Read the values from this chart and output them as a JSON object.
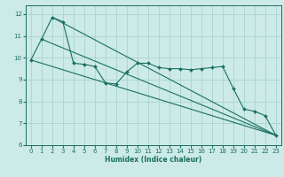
{
  "xlabel": "Humidex (Indice chaleur)",
  "xlim": [
    -0.5,
    23.5
  ],
  "ylim": [
    6.0,
    12.4
  ],
  "yticks": [
    6,
    7,
    8,
    9,
    10,
    11,
    12
  ],
  "xticks": [
    0,
    1,
    2,
    3,
    4,
    5,
    6,
    7,
    8,
    9,
    10,
    11,
    12,
    13,
    14,
    15,
    16,
    17,
    18,
    19,
    20,
    21,
    22,
    23
  ],
  "bg_color": "#cceae7",
  "grid_color": "#aad4cf",
  "line_color": "#1a7060",
  "line1_x": [
    0,
    1,
    2,
    3,
    4,
    5,
    6,
    7,
    8,
    9,
    10,
    11,
    12,
    13,
    14,
    15,
    16,
    17,
    18,
    19,
    20,
    21,
    22,
    23
  ],
  "line1_y": [
    9.9,
    10.85,
    11.85,
    11.65,
    9.75,
    9.7,
    9.6,
    8.85,
    8.8,
    9.35,
    9.75,
    9.75,
    9.55,
    9.5,
    9.5,
    9.45,
    9.5,
    9.55,
    9.6,
    8.6,
    7.65,
    7.55,
    7.35,
    6.45
  ],
  "trend1_x": [
    0,
    23
  ],
  "trend1_y": [
    9.9,
    6.45
  ],
  "trend2_x": [
    2,
    23
  ],
  "trend2_y": [
    11.85,
    6.45
  ],
  "trend3_x": [
    1,
    23
  ],
  "trend3_y": [
    10.85,
    6.45
  ]
}
